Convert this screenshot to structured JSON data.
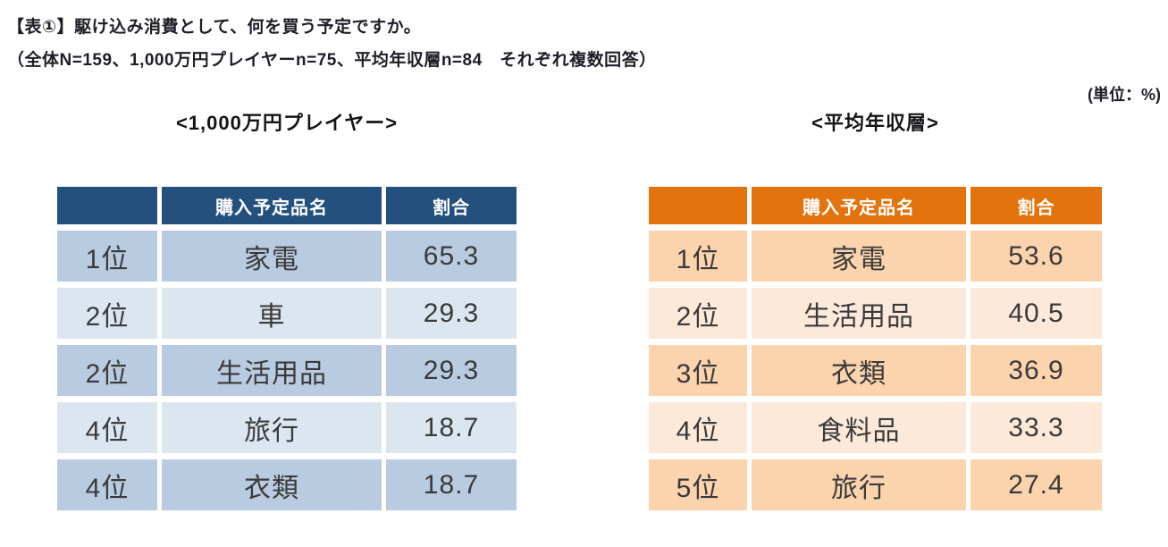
{
  "header": {
    "title": "【表①】駆け込み消費として、何を買う予定ですか。",
    "subtitle": "（全体N=159、1,000万円プレイヤーn=75、平均年収層n=84　それぞれ複数回答）",
    "unit": "(単位：%)"
  },
  "theme": {
    "blue_header": "#24507E",
    "blue_row_dark": "#B9CBE1",
    "blue_row_light": "#DCE6F1",
    "orange_header": "#E2730D",
    "orange_row_dark": "#FBD3AC",
    "orange_row_light": "#FDE9D9",
    "header_text": "#FFFFFF",
    "body_text": "#3A3A3A",
    "title_text": "#1E1E28"
  },
  "tables": [
    {
      "caption": "<1,000万円プレイヤー>",
      "headers": [
        "",
        "購入予定品名",
        "割合"
      ],
      "rows": [
        {
          "rank": "1位",
          "item": "家電",
          "value": "65.3"
        },
        {
          "rank": "2位",
          "item": "車",
          "value": "29.3"
        },
        {
          "rank": "2位",
          "item": "生活用品",
          "value": "29.3"
        },
        {
          "rank": "4位",
          "item": "旅行",
          "value": "18.7"
        },
        {
          "rank": "4位",
          "item": "衣類",
          "value": "18.7"
        }
      ]
    },
    {
      "caption": "<平均年収層>",
      "headers": [
        "",
        "購入予定品名",
        "割合"
      ],
      "rows": [
        {
          "rank": "1位",
          "item": "家電",
          "value": "53.6"
        },
        {
          "rank": "2位",
          "item": "生活用品",
          "value": "40.5"
        },
        {
          "rank": "3位",
          "item": "衣類",
          "value": "36.9"
        },
        {
          "rank": "4位",
          "item": "食料品",
          "value": "33.3"
        },
        {
          "rank": "5位",
          "item": "旅行",
          "value": "27.4"
        }
      ]
    }
  ],
  "chart_data": {
    "type": "table",
    "title": "【表①】駆け込み消費として、何を買う予定ですか。",
    "note": "（全体N=159、1,000万円プレイヤーn=75、平均年収層n=84　それぞれ複数回答）",
    "unit": "%",
    "tables": [
      {
        "group": "1,000万円プレイヤー",
        "n": 75,
        "columns": [
          "",
          "購入予定品名",
          "割合"
        ],
        "rows": [
          [
            "1位",
            "家電",
            65.3
          ],
          [
            "2位",
            "車",
            29.3
          ],
          [
            "2位",
            "生活用品",
            29.3
          ],
          [
            "4位",
            "旅行",
            18.7
          ],
          [
            "4位",
            "衣類",
            18.7
          ]
        ]
      },
      {
        "group": "平均年収層",
        "n": 84,
        "columns": [
          "",
          "購入予定品名",
          "割合"
        ],
        "rows": [
          [
            "1位",
            "家電",
            53.6
          ],
          [
            "2位",
            "生活用品",
            40.5
          ],
          [
            "3位",
            "衣類",
            36.9
          ],
          [
            "4位",
            "食料品",
            33.3
          ],
          [
            "5位",
            "旅行",
            27.4
          ]
        ]
      }
    ]
  }
}
